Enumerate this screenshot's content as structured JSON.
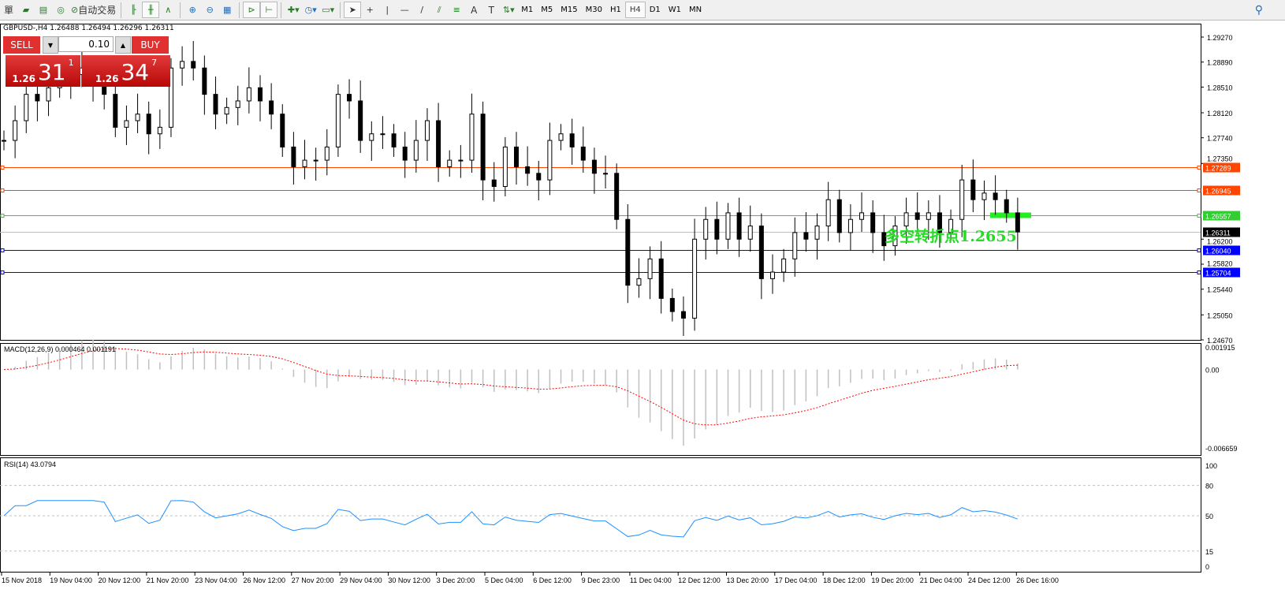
{
  "toolbar": {
    "items": [
      {
        "label": "單",
        "icon": "order-icon"
      },
      {
        "label": "",
        "icon": "folder-icon"
      },
      {
        "label": "",
        "icon": "history-icon"
      },
      {
        "label": "",
        "icon": "signal-icon"
      },
      {
        "label": "自动交易",
        "icon": "autotrade-icon"
      },
      {
        "label": "",
        "icon": "bar-chart-icon"
      },
      {
        "label": "",
        "icon": "candle-chart-icon"
      },
      {
        "label": "",
        "icon": "line-chart-icon"
      },
      {
        "label": "",
        "icon": "zoom-in-icon"
      },
      {
        "label": "",
        "icon": "zoom-out-icon"
      },
      {
        "label": "",
        "icon": "tile-icon"
      },
      {
        "label": "",
        "icon": "autoscroll-icon"
      },
      {
        "label": "",
        "icon": "chart-shift-icon"
      },
      {
        "label": "",
        "icon": "indicators-icon"
      },
      {
        "label": "",
        "icon": "periods-icon"
      },
      {
        "label": "",
        "icon": "templates-icon"
      },
      {
        "label": "",
        "icon": "cursor-icon"
      },
      {
        "label": "",
        "icon": "crosshair-icon"
      },
      {
        "label": "",
        "icon": "vertical-line-icon"
      },
      {
        "label": "",
        "icon": "horizontal-line-icon"
      },
      {
        "label": "",
        "icon": "trendline-icon"
      },
      {
        "label": "",
        "icon": "fibo-fan-icon"
      },
      {
        "label": "",
        "icon": "fibo-retracement-icon"
      },
      {
        "label": "A",
        "icon": "text-icon"
      },
      {
        "label": "T",
        "icon": "text-label-icon"
      },
      {
        "label": "",
        "icon": "arrows-icon"
      }
    ],
    "timeframes": [
      "M1",
      "M5",
      "M15",
      "M30",
      "H1",
      "H4",
      "D1",
      "W1",
      "MN"
    ],
    "active_timeframe": "H4"
  },
  "chart": {
    "title": "GBPUSD-,H4  1.26488 1.26494 1.26296 1.26311",
    "sell_label": "SELL",
    "buy_label": "BUY",
    "lot": "0.10",
    "sell_price": {
      "prefix": "1.26",
      "big": "31",
      "sup": "1"
    },
    "buy_price": {
      "prefix": "1.26",
      "big": "34",
      "sup": "7"
    },
    "price_ticks": [
      "1.29270",
      "1.28890",
      "1.28510",
      "1.28120",
      "1.27740",
      "1.27350",
      "1.26200",
      "1.25820",
      "1.25440",
      "1.25050",
      "1.24670"
    ],
    "price_range": [
      1.2467,
      1.2927
    ],
    "levels": [
      {
        "price": "1.27289",
        "color": "#ff4500"
      },
      {
        "price": "1.26945",
        "color": "#ff4500"
      },
      {
        "price": "1.26557",
        "color": "#33cc33"
      },
      {
        "price": "1.26311",
        "color": "#000000",
        "bid": true
      },
      {
        "price": "1.26040",
        "color": "#0000ff"
      },
      {
        "price": "1.25704",
        "color": "#0000ff"
      }
    ],
    "annotation": "多空转折点1.2655",
    "closes": [
      1.277,
      1.28,
      1.284,
      1.283,
      1.285,
      1.286,
      1.287,
      1.288,
      1.286,
      1.284,
      1.279,
      1.28,
      1.281,
      1.278,
      1.279,
      1.288,
      1.289,
      1.288,
      1.284,
      1.281,
      1.282,
      1.283,
      1.285,
      1.283,
      1.281,
      1.276,
      1.273,
      1.274,
      1.274,
      1.276,
      1.284,
      1.283,
      1.277,
      1.278,
      1.278,
      1.276,
      1.274,
      1.277,
      1.28,
      1.273,
      1.274,
      1.274,
      1.281,
      1.271,
      1.27,
      1.276,
      1.273,
      1.272,
      1.271,
      1.277,
      1.278,
      1.276,
      1.274,
      1.272,
      1.272,
      1.265,
      1.255,
      1.256,
      1.259,
      1.253,
      1.251,
      1.25,
      1.262,
      1.265,
      1.262,
      1.266,
      1.262,
      1.264,
      1.256,
      1.257,
      1.259,
      1.263,
      1.262,
      1.264,
      1.268,
      1.263,
      1.265,
      1.266,
      1.263,
      1.261,
      1.264,
      1.266,
      1.265,
      1.266,
      1.263,
      1.265,
      1.271,
      1.268,
      1.269,
      1.268,
      1.266,
      1.2631
    ]
  },
  "macd": {
    "label": "MACD(12,26,9) 0.000464 0.001191",
    "ticks": [
      "0.001915",
      "0.00",
      "-0.006659"
    ],
    "range": [
      -0.006659,
      0.001915
    ]
  },
  "rsi": {
    "label": "RSI(14) 43.0794",
    "ticks": [
      "100",
      "80",
      "50",
      "15",
      "0"
    ]
  },
  "time_axis": [
    "15 Nov 2018",
    "19 Nov 04:00",
    "20 Nov 12:00",
    "21 Nov 20:00",
    "23 Nov 04:00",
    "26 Nov 12:00",
    "27 Nov 20:00",
    "29 Nov 04:00",
    "30 Nov 12:00",
    "3 Dec 20:00",
    "5 Dec 04:00",
    "6 Dec 12:00",
    "9 Dec 23:00",
    "11 Dec 04:00",
    "12 Dec 12:00",
    "13 Dec 20:00",
    "17 Dec 04:00",
    "18 Dec 12:00",
    "19 Dec 20:00",
    "21 Dec 04:00",
    "24 Dec 12:00",
    "26 Dec 16:00"
  ]
}
